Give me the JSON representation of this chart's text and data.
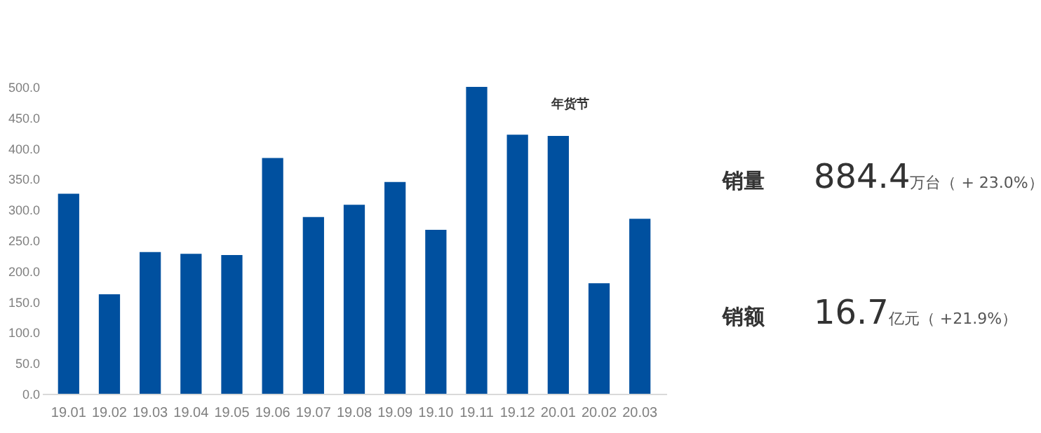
{
  "chart_data": {
    "type": "bar",
    "categories": [
      "19.01",
      "19.02",
      "19.03",
      "19.04",
      "19.05",
      "19.06",
      "19.07",
      "19.08",
      "19.09",
      "19.10",
      "19.11",
      "19.12",
      "20.01",
      "20.02",
      "20.03"
    ],
    "values": [
      326,
      162,
      231,
      228,
      226,
      384,
      288,
      308,
      345,
      267,
      500,
      422,
      420,
      180,
      285
    ],
    "color": "#00509f",
    "ylim": [
      0,
      500
    ],
    "yticks": [
      {
        "value": 0,
        "label": "0.0"
      },
      {
        "value": 50,
        "label": "50.0"
      },
      {
        "value": 100,
        "label": "100.0"
      },
      {
        "value": 150,
        "label": "150.0"
      },
      {
        "value": 200,
        "label": "200.0"
      },
      {
        "value": 250,
        "label": "250.0"
      },
      {
        "value": 300,
        "label": "300.0"
      },
      {
        "value": 350,
        "label": "350.0"
      },
      {
        "value": 400,
        "label": "400.0"
      },
      {
        "value": 450,
        "label": "450.0"
      },
      {
        "value": 500,
        "label": "500.0"
      }
    ],
    "grid": false,
    "annotations": [
      "年货节",
      "销量",
      "884.4",
      "万台（ + 23.0%）",
      "销额",
      "16.7",
      "亿元（ +21.9%）"
    ]
  }
}
